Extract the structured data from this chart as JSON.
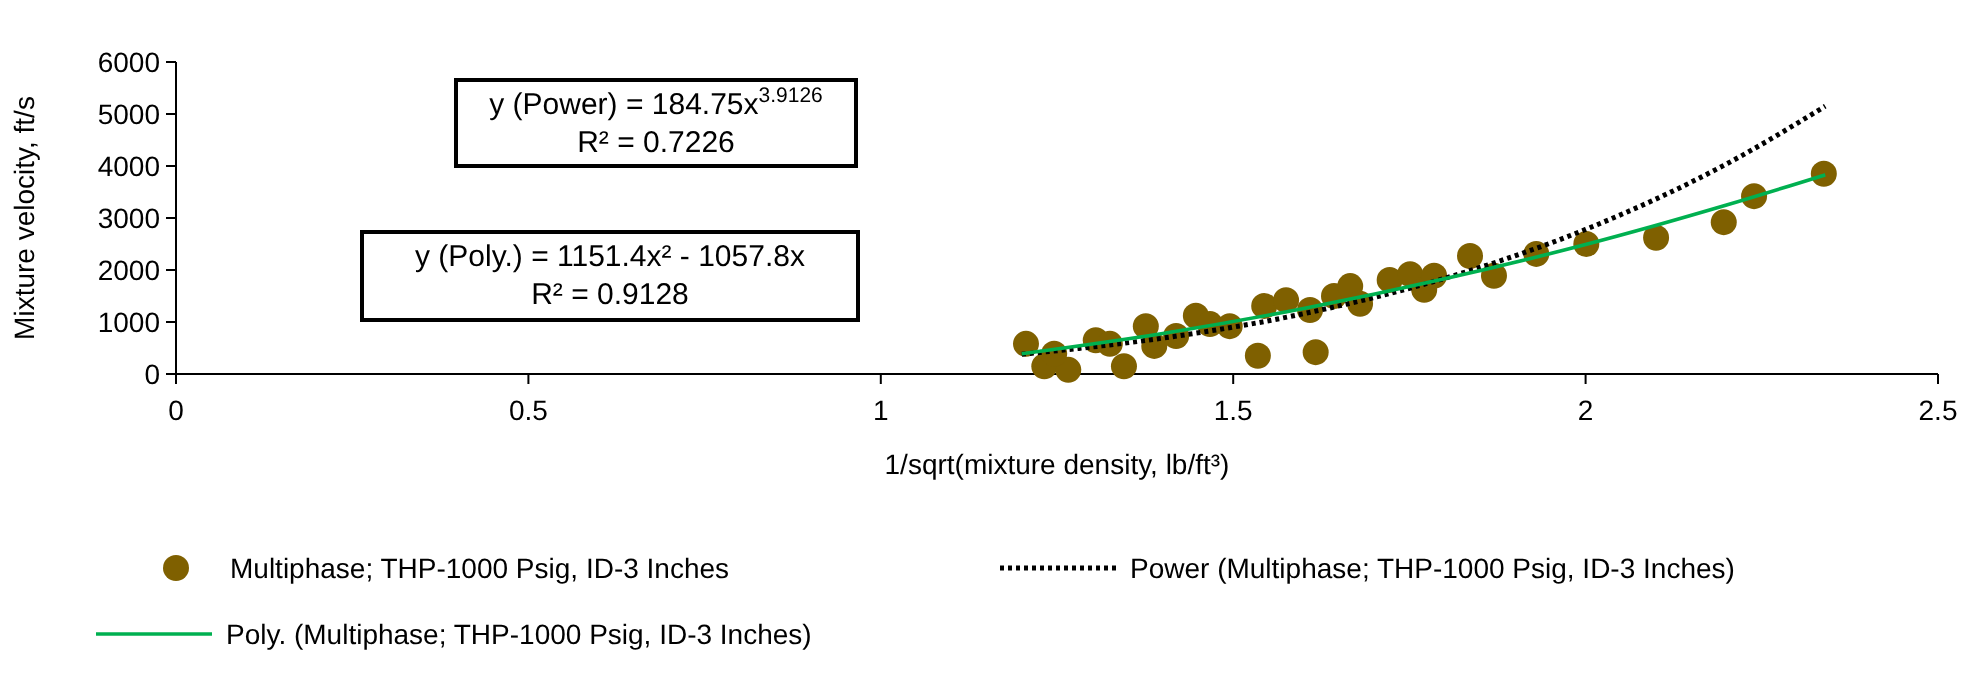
{
  "chart_data": {
    "type": "scatter",
    "xlabel": "1/sqrt(mixture density, lb/ft³)",
    "ylabel": "Mixture velocity, ft/s",
    "xlim": [
      0,
      2.5
    ],
    "xticks": [
      0,
      0.5,
      1,
      1.5,
      2,
      2.5
    ],
    "ylim": [
      0,
      6000
    ],
    "yticks": [
      0,
      1000,
      2000,
      3000,
      4000,
      5000,
      6000
    ],
    "grid": false,
    "legend": "bottom",
    "annotations": [
      "y (Power) = 184.75x$^{3.9126}$\nR² = 0.7226",
      "y (Poly.) = 1151.4x² - 1057.8x\nR² = 0.9128"
    ],
    "series": [
      {
        "name": "Multiphase; THP-1000 Psig, ID-3 Inches",
        "marker": "circle",
        "color": "#7f6000",
        "x": [
          1.206,
          1.232,
          1.266,
          1.246,
          1.305,
          1.345,
          1.325,
          1.376,
          1.388,
          1.419,
          1.447,
          1.467,
          1.495,
          1.535,
          1.544,
          1.575,
          1.617,
          1.609,
          1.643,
          1.666,
          1.68,
          1.722,
          1.751,
          1.771,
          1.785,
          1.836,
          1.87,
          1.93,
          2.001,
          2.1,
          2.196,
          2.239,
          2.338
        ],
        "values": [
          580,
          150,
          80,
          390,
          650,
          150,
          580,
          920,
          540,
          730,
          1120,
          960,
          920,
          350,
          1310,
          1420,
          420,
          1230,
          1500,
          1690,
          1350,
          1810,
          1920,
          1620,
          1890,
          2270,
          1890,
          2310,
          2500,
          2620,
          2920,
          3420,
          3850
        ]
      },
      {
        "name": "Power (Multiphase; THP-1000 Psig, ID-3 Inches)",
        "type": "line",
        "line_style": "dotted",
        "color": "#000000",
        "x": [
          1.2,
          1.4,
          1.6,
          1.8,
          2.0,
          2.2,
          2.34
        ],
        "values": [
          380,
          690,
          1160,
          1840,
          2780,
          4040,
          5150
        ]
      },
      {
        "name": "Poly. (Multiphase; THP-1000 Psig, ID-3 Inches)",
        "type": "line",
        "line_style": "solid",
        "color": "#00b050",
        "x": [
          1.2,
          1.4,
          1.6,
          1.8,
          2.0,
          2.2,
          2.34
        ],
        "values": [
          390,
          780,
          1260,
          1830,
          2490,
          3250,
          3830
        ]
      }
    ]
  }
}
